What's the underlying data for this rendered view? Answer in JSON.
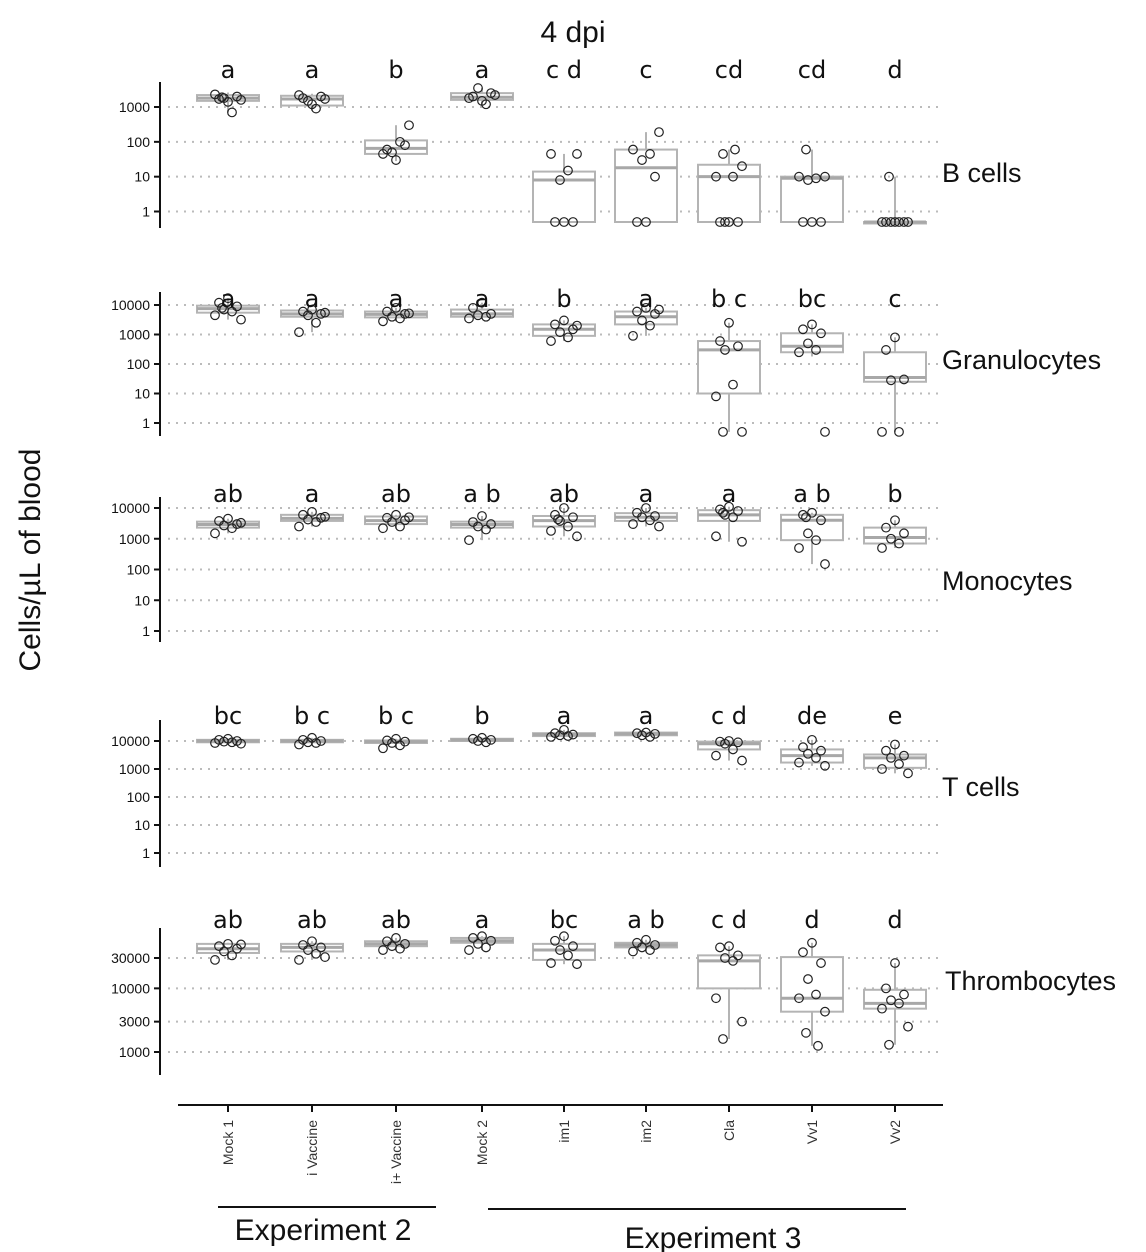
{
  "title": "4 dpi",
  "ylabel": "Cells/µL of blood",
  "groups": [
    {
      "label": "Experiment 2"
    },
    {
      "label": "Experiment 3"
    }
  ],
  "chart_data": {
    "type": "box",
    "title": "4 dpi",
    "ylabel": "Cells/µL of blood",
    "categories": [
      "Mock 1",
      "i Vaccine",
      "i+ Vaccine",
      "Mock 2",
      "im1",
      "im2",
      "Cla",
      "Vv1",
      "Vv2"
    ],
    "groups": [
      {
        "label": "Experiment 2",
        "categories": [
          "Mock 1",
          "i Vaccine",
          "i+ Vaccine"
        ]
      },
      {
        "label": "Experiment 3",
        "categories": [
          "Mock 2",
          "im1",
          "im2",
          "Cla",
          "Vv1",
          "Vv2"
        ]
      }
    ],
    "y_scale": "log",
    "panels": [
      {
        "name": "B cells",
        "ticks": [
          1,
          10,
          100,
          1000
        ],
        "ylim": [
          0.35,
          6000
        ],
        "letters": [
          "a",
          "a",
          "b",
          "a",
          "c d",
          "c",
          "cd",
          "cd",
          "d"
        ],
        "boxes": [
          {
            "q1": 1500,
            "median": 1800,
            "q3": 2200,
            "wlo": 700,
            "whi": 2600
          },
          {
            "q1": 1100,
            "median": 1700,
            "q3": 2100,
            "wlo": 800,
            "whi": 2400
          },
          {
            "q1": 45,
            "median": 65,
            "q3": 110,
            "wlo": 28,
            "whi": 300
          },
          {
            "q1": 1600,
            "median": 1900,
            "q3": 2500,
            "wlo": 1100,
            "whi": 3500
          },
          {
            "q1": 0.5,
            "median": 8,
            "q3": 14,
            "wlo": 0.5,
            "whi": 45
          },
          {
            "q1": 0.5,
            "median": 18,
            "q3": 60,
            "wlo": 0.5,
            "whi": 190
          },
          {
            "q1": 0.5,
            "median": 10,
            "q3": 22,
            "wlo": 0.5,
            "whi": 60
          },
          {
            "q1": 0.5,
            "median": 9,
            "q3": 10,
            "wlo": 0.5,
            "whi": 60
          },
          {
            "q1": 0.5,
            "median": 0.5,
            "q3": 0.5,
            "wlo": 0.5,
            "whi": 10
          }
        ],
        "points": [
          [
            1400,
            1700,
            2000,
            1800,
            700,
            2300,
            1600,
            1900
          ],
          [
            1200,
            1800,
            2000,
            1500,
            900,
            2200,
            1700
          ],
          [
            30,
            60,
            80,
            50,
            100,
            45,
            300
          ],
          [
            1500,
            2000,
            2500,
            3500,
            1200,
            1800,
            2200
          ],
          [
            0.5,
            0.5,
            0.5,
            8,
            15,
            45,
            45
          ],
          [
            0.5,
            0.5,
            10,
            30,
            45,
            60,
            190
          ],
          [
            0.5,
            0.5,
            0.5,
            0.5,
            10,
            10,
            20,
            45,
            60
          ],
          [
            0.5,
            0.5,
            0.5,
            8,
            9,
            10,
            10,
            60
          ],
          [
            0.5,
            0.5,
            0.5,
            0.5,
            0.5,
            0.5,
            0.5,
            10
          ]
        ]
      },
      {
        "name": "Granulocytes",
        "ticks": [
          1,
          10,
          100,
          1000,
          10000
        ],
        "ylim": [
          0.4,
          22000
        ],
        "letters": [
          "a",
          "a",
          "a",
          "a",
          "b",
          "a",
          "b c",
          "bc",
          "c"
        ],
        "boxes": [
          {
            "q1": 5500,
            "median": 7500,
            "q3": 9500,
            "wlo": 3200,
            "whi": 17000
          },
          {
            "q1": 4000,
            "median": 5000,
            "q3": 6500,
            "wlo": 1200,
            "whi": 7000
          },
          {
            "q1": 3800,
            "median": 4800,
            "q3": 6000,
            "wlo": 2800,
            "whi": 8000
          },
          {
            "q1": 4000,
            "median": 5000,
            "q3": 7000,
            "wlo": 3500,
            "whi": 12000
          },
          {
            "q1": 900,
            "median": 1500,
            "q3": 2200,
            "wlo": 600,
            "whi": 3000
          },
          {
            "q1": 2200,
            "median": 4000,
            "q3": 6000,
            "wlo": 900,
            "whi": 8000
          },
          {
            "q1": 10,
            "median": 300,
            "q3": 600,
            "wlo": 0.5,
            "whi": 2500
          },
          {
            "q1": 250,
            "median": 400,
            "q3": 1100,
            "wlo": 180,
            "whi": 2200
          },
          {
            "q1": 25,
            "median": 35,
            "q3": 250,
            "wlo": 0.5,
            "whi": 800
          }
        ],
        "points": [
          [
            17000,
            12000,
            9000,
            7000,
            6000,
            4500,
            3200,
            8000
          ],
          [
            7000,
            6000,
            5000,
            4500,
            2500,
            1200,
            5500
          ],
          [
            8000,
            6000,
            5000,
            4000,
            3500,
            2800,
            5200
          ],
          [
            12000,
            8000,
            5000,
            4500,
            4000,
            3500
          ],
          [
            3000,
            2200,
            1500,
            1200,
            800,
            600,
            2000
          ],
          [
            8000,
            6000,
            5000,
            3000,
            2000,
            900,
            7000
          ],
          [
            2500,
            600,
            400,
            300,
            20,
            8,
            0.5,
            0.5
          ],
          [
            2200,
            1500,
            1100,
            500,
            300,
            250,
            0.5
          ],
          [
            800,
            300,
            30,
            28,
            0.5,
            0.5
          ]
        ]
      },
      {
        "name": "Monocytes",
        "ticks": [
          1,
          10,
          100,
          1000,
          10000
        ],
        "ylim": [
          0.4,
          16000
        ],
        "letters": [
          "ab",
          "a",
          "ab",
          "a b",
          "ab",
          "a",
          "a",
          "a b",
          "b"
        ],
        "boxes": [
          {
            "q1": 2300,
            "median": 2900,
            "q3": 3600,
            "wlo": 1500,
            "whi": 4500
          },
          {
            "q1": 3800,
            "median": 4600,
            "q3": 6000,
            "wlo": 2500,
            "whi": 7500
          },
          {
            "q1": 3000,
            "median": 3900,
            "q3": 5300,
            "wlo": 2200,
            "whi": 6000
          },
          {
            "q1": 2300,
            "median": 2900,
            "q3": 3600,
            "wlo": 900,
            "whi": 5500
          },
          {
            "q1": 2500,
            "median": 3900,
            "q3": 5500,
            "wlo": 1200,
            "whi": 10000
          },
          {
            "q1": 3800,
            "median": 5000,
            "q3": 6800,
            "wlo": 2500,
            "whi": 10000
          },
          {
            "q1": 3800,
            "median": 6000,
            "q3": 8500,
            "wlo": 800,
            "whi": 11000
          },
          {
            "q1": 900,
            "median": 4000,
            "q3": 6000,
            "wlo": 150,
            "whi": 7000
          },
          {
            "q1": 700,
            "median": 1100,
            "q3": 2300,
            "wlo": 500,
            "whi": 4000
          }
        ],
        "points": [
          [
            4500,
            3800,
            3000,
            2700,
            2200,
            1500,
            3300
          ],
          [
            7500,
            6000,
            4800,
            4200,
            3500,
            2500,
            5200
          ],
          [
            6000,
            4800,
            4000,
            3500,
            2500,
            2200,
            5000
          ],
          [
            5500,
            3500,
            3000,
            2500,
            2000,
            900
          ],
          [
            10000,
            6000,
            5000,
            3800,
            2500,
            1800,
            1200,
            4300
          ],
          [
            10000,
            7000,
            5500,
            5000,
            4000,
            3000,
            2500
          ],
          [
            11000,
            9000,
            8000,
            6000,
            5000,
            1200,
            800,
            7000
          ],
          [
            7000,
            6000,
            4000,
            1500,
            900,
            500,
            150,
            5000
          ],
          [
            4000,
            2300,
            1500,
            1000,
            700,
            500
          ]
        ]
      },
      {
        "name": "T cells",
        "ticks": [
          1,
          10,
          100,
          1000,
          10000
        ],
        "ylim": [
          0.4,
          40000
        ],
        "letters": [
          "bc",
          "b c",
          "b c",
          "b",
          "a",
          "a",
          "c d",
          "de",
          "e"
        ],
        "boxes": [
          {
            "q1": 9000,
            "median": 10000,
            "q3": 11000,
            "wlo": 8000,
            "whi": 12000
          },
          {
            "q1": 9000,
            "median": 10000,
            "q3": 11000,
            "wlo": 7500,
            "whi": 13000
          },
          {
            "q1": 8500,
            "median": 9500,
            "q3": 10500,
            "wlo": 5500,
            "whi": 12000
          },
          {
            "q1": 10000,
            "median": 11000,
            "q3": 12000,
            "wlo": 9000,
            "whi": 13000
          },
          {
            "q1": 15000,
            "median": 17000,
            "q3": 19000,
            "wlo": 14000,
            "whi": 25000
          },
          {
            "q1": 16000,
            "median": 18000,
            "q3": 20000,
            "wlo": 14000,
            "whi": 20000
          },
          {
            "q1": 5000,
            "median": 8000,
            "q3": 9500,
            "wlo": 2000,
            "whi": 10000
          },
          {
            "q1": 1700,
            "median": 3000,
            "q3": 5000,
            "wlo": 1300,
            "whi": 11000
          },
          {
            "q1": 1100,
            "median": 2500,
            "q3": 3300,
            "wlo": 700,
            "whi": 7500
          }
        ],
        "points": [
          [
            12000,
            11000,
            10000,
            9500,
            9000,
            8500,
            8000
          ],
          [
            13000,
            11000,
            10000,
            9000,
            8500,
            7500
          ],
          [
            12000,
            10500,
            9500,
            8500,
            7000,
            5500
          ],
          [
            13000,
            12000,
            11000,
            10000,
            9000
          ],
          [
            25000,
            19000,
            17000,
            16000,
            15000,
            14000
          ],
          [
            20000,
            19000,
            18000,
            16000,
            14000
          ],
          [
            10000,
            9500,
            9000,
            8000,
            5000,
            3000,
            2000
          ],
          [
            11000,
            6000,
            4500,
            3500,
            2500,
            1700,
            1300
          ],
          [
            7500,
            4500,
            3000,
            2500,
            1500,
            1000,
            700
          ]
        ]
      },
      {
        "name": "Thrombocytes",
        "ticks": [
          1000,
          3000,
          10000,
          30000
        ],
        "ylim": [
          500,
          130000
        ],
        "letters": [
          "ab",
          "ab",
          "ab",
          "a",
          "bc",
          "a b",
          "c d",
          "d",
          "d"
        ],
        "boxes": [
          {
            "q1": 36000,
            "median": 42000,
            "q3": 50000,
            "wlo": 28000,
            "whi": 52000
          },
          {
            "q1": 38000,
            "median": 44000,
            "q3": 50000,
            "wlo": 28000,
            "whi": 55000
          },
          {
            "q1": 46000,
            "median": 50000,
            "q3": 55000,
            "wlo": 40000,
            "whi": 62000
          },
          {
            "q1": 52000,
            "median": 56000,
            "q3": 62000,
            "wlo": 40000,
            "whi": 66000
          },
          {
            "q1": 28000,
            "median": 40000,
            "q3": 50000,
            "wlo": 24000,
            "whi": 66000
          },
          {
            "q1": 44000,
            "median": 48000,
            "q3": 52000,
            "wlo": 38000,
            "whi": 58000
          },
          {
            "q1": 10000,
            "median": 27000,
            "q3": 33000,
            "wlo": 1600,
            "whi": 46000
          },
          {
            "q1": 4300,
            "median": 7000,
            "q3": 31000,
            "wlo": 1250,
            "whi": 52000
          },
          {
            "q1": 4800,
            "median": 5800,
            "q3": 9500,
            "wlo": 1300,
            "whi": 25000
          }
        ],
        "points": [
          [
            50000,
            46000,
            42000,
            38000,
            33000,
            28000,
            49000
          ],
          [
            55000,
            48000,
            44000,
            40000,
            35000,
            28000,
            31000
          ],
          [
            62000,
            55000,
            50000,
            46000,
            42000,
            40000
          ],
          [
            66000,
            62000,
            56000,
            50000,
            44000,
            40000
          ],
          [
            66000,
            56000,
            46000,
            40000,
            33000,
            25000,
            24000
          ],
          [
            58000,
            52000,
            48000,
            44000,
            40000,
            38000
          ],
          [
            46000,
            44000,
            33000,
            30000,
            27000,
            7000,
            3000,
            1600
          ],
          [
            52000,
            37000,
            25000,
            14000,
            8000,
            7000,
            4300,
            2000,
            1250
          ],
          [
            25000,
            10000,
            8000,
            6500,
            5800,
            4800,
            2500,
            1300
          ]
        ]
      }
    ]
  }
}
